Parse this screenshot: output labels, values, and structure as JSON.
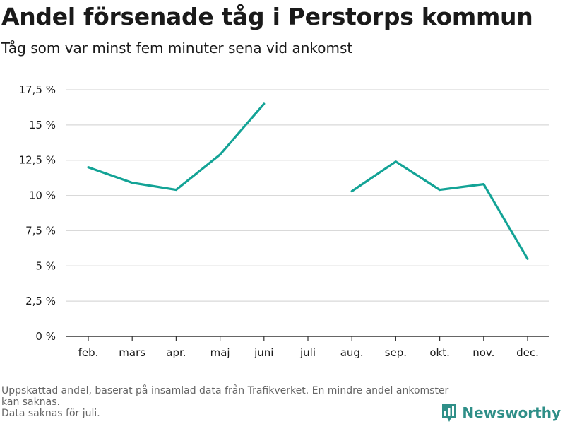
{
  "title": "Andel försenade tåg i Perstorps kommun",
  "subtitle": "Tåg som var minst fem minuter sena vid ankomst",
  "notes": [
    "Uppskattad andel, baserat på insamlad data från Trafikverket. En mindre andel ankomster kan saknas.",
    "Data saknas för juli."
  ],
  "brand": {
    "name": "Newsworthy",
    "icon": "bar-chart-logo-icon"
  },
  "colors": {
    "line": "#13a396",
    "grid": "#d9d9d9",
    "axis": "#333333",
    "brand": "#2f8f88"
  },
  "chart_data": {
    "type": "line",
    "categories": [
      "feb.",
      "mars",
      "apr.",
      "maj",
      "juni",
      "juli",
      "aug.",
      "sep.",
      "okt.",
      "nov.",
      "dec."
    ],
    "series": [
      {
        "values": [
          12.0,
          10.9,
          10.4,
          12.9,
          16.5,
          null,
          10.3,
          12.4,
          10.4,
          10.8,
          5.5
        ]
      }
    ],
    "yticks": [
      0,
      2.5,
      5,
      7.5,
      10,
      12.5,
      15,
      17.5
    ],
    "ytick_labels": [
      "0 %",
      "2,5 %",
      "5 %",
      "7,5 %",
      "10 %",
      "12,5 %",
      "15 %",
      "17,5 %"
    ],
    "ylim": [
      0,
      17.5
    ],
    "grid": true,
    "legend": "none",
    "xlabel": "",
    "ylabel": ""
  }
}
